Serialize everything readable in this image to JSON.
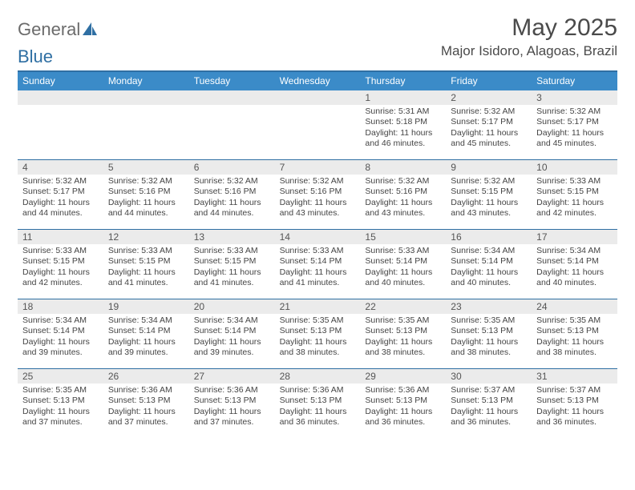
{
  "logo": {
    "text_general": "General",
    "text_blue": "Blue"
  },
  "header": {
    "month_year": "May 2025",
    "location": "Major Isidoro, Alagoas, Brazil"
  },
  "colors": {
    "header_bar": "#3b8bc8",
    "border": "#2f6fa3",
    "daynum_bg": "#ebebeb",
    "text": "#444444"
  },
  "days_of_week": [
    "Sunday",
    "Monday",
    "Tuesday",
    "Wednesday",
    "Thursday",
    "Friday",
    "Saturday"
  ],
  "weeks": [
    [
      {
        "n": "",
        "sr": "",
        "ss": "",
        "dl": ""
      },
      {
        "n": "",
        "sr": "",
        "ss": "",
        "dl": ""
      },
      {
        "n": "",
        "sr": "",
        "ss": "",
        "dl": ""
      },
      {
        "n": "",
        "sr": "",
        "ss": "",
        "dl": ""
      },
      {
        "n": "1",
        "sr": "5:31 AM",
        "ss": "5:18 PM",
        "dl": "11 hours and 46 minutes."
      },
      {
        "n": "2",
        "sr": "5:32 AM",
        "ss": "5:17 PM",
        "dl": "11 hours and 45 minutes."
      },
      {
        "n": "3",
        "sr": "5:32 AM",
        "ss": "5:17 PM",
        "dl": "11 hours and 45 minutes."
      }
    ],
    [
      {
        "n": "4",
        "sr": "5:32 AM",
        "ss": "5:17 PM",
        "dl": "11 hours and 44 minutes."
      },
      {
        "n": "5",
        "sr": "5:32 AM",
        "ss": "5:16 PM",
        "dl": "11 hours and 44 minutes."
      },
      {
        "n": "6",
        "sr": "5:32 AM",
        "ss": "5:16 PM",
        "dl": "11 hours and 44 minutes."
      },
      {
        "n": "7",
        "sr": "5:32 AM",
        "ss": "5:16 PM",
        "dl": "11 hours and 43 minutes."
      },
      {
        "n": "8",
        "sr": "5:32 AM",
        "ss": "5:16 PM",
        "dl": "11 hours and 43 minutes."
      },
      {
        "n": "9",
        "sr": "5:32 AM",
        "ss": "5:15 PM",
        "dl": "11 hours and 43 minutes."
      },
      {
        "n": "10",
        "sr": "5:33 AM",
        "ss": "5:15 PM",
        "dl": "11 hours and 42 minutes."
      }
    ],
    [
      {
        "n": "11",
        "sr": "5:33 AM",
        "ss": "5:15 PM",
        "dl": "11 hours and 42 minutes."
      },
      {
        "n": "12",
        "sr": "5:33 AM",
        "ss": "5:15 PM",
        "dl": "11 hours and 41 minutes."
      },
      {
        "n": "13",
        "sr": "5:33 AM",
        "ss": "5:15 PM",
        "dl": "11 hours and 41 minutes."
      },
      {
        "n": "14",
        "sr": "5:33 AM",
        "ss": "5:14 PM",
        "dl": "11 hours and 41 minutes."
      },
      {
        "n": "15",
        "sr": "5:33 AM",
        "ss": "5:14 PM",
        "dl": "11 hours and 40 minutes."
      },
      {
        "n": "16",
        "sr": "5:34 AM",
        "ss": "5:14 PM",
        "dl": "11 hours and 40 minutes."
      },
      {
        "n": "17",
        "sr": "5:34 AM",
        "ss": "5:14 PM",
        "dl": "11 hours and 40 minutes."
      }
    ],
    [
      {
        "n": "18",
        "sr": "5:34 AM",
        "ss": "5:14 PM",
        "dl": "11 hours and 39 minutes."
      },
      {
        "n": "19",
        "sr": "5:34 AM",
        "ss": "5:14 PM",
        "dl": "11 hours and 39 minutes."
      },
      {
        "n": "20",
        "sr": "5:34 AM",
        "ss": "5:14 PM",
        "dl": "11 hours and 39 minutes."
      },
      {
        "n": "21",
        "sr": "5:35 AM",
        "ss": "5:13 PM",
        "dl": "11 hours and 38 minutes."
      },
      {
        "n": "22",
        "sr": "5:35 AM",
        "ss": "5:13 PM",
        "dl": "11 hours and 38 minutes."
      },
      {
        "n": "23",
        "sr": "5:35 AM",
        "ss": "5:13 PM",
        "dl": "11 hours and 38 minutes."
      },
      {
        "n": "24",
        "sr": "5:35 AM",
        "ss": "5:13 PM",
        "dl": "11 hours and 38 minutes."
      }
    ],
    [
      {
        "n": "25",
        "sr": "5:35 AM",
        "ss": "5:13 PM",
        "dl": "11 hours and 37 minutes."
      },
      {
        "n": "26",
        "sr": "5:36 AM",
        "ss": "5:13 PM",
        "dl": "11 hours and 37 minutes."
      },
      {
        "n": "27",
        "sr": "5:36 AM",
        "ss": "5:13 PM",
        "dl": "11 hours and 37 minutes."
      },
      {
        "n": "28",
        "sr": "5:36 AM",
        "ss": "5:13 PM",
        "dl": "11 hours and 36 minutes."
      },
      {
        "n": "29",
        "sr": "5:36 AM",
        "ss": "5:13 PM",
        "dl": "11 hours and 36 minutes."
      },
      {
        "n": "30",
        "sr": "5:37 AM",
        "ss": "5:13 PM",
        "dl": "11 hours and 36 minutes."
      },
      {
        "n": "31",
        "sr": "5:37 AM",
        "ss": "5:13 PM",
        "dl": "11 hours and 36 minutes."
      }
    ]
  ],
  "labels": {
    "sunrise_prefix": "Sunrise: ",
    "sunset_prefix": "Sunset: ",
    "daylight_prefix": "Daylight: "
  }
}
